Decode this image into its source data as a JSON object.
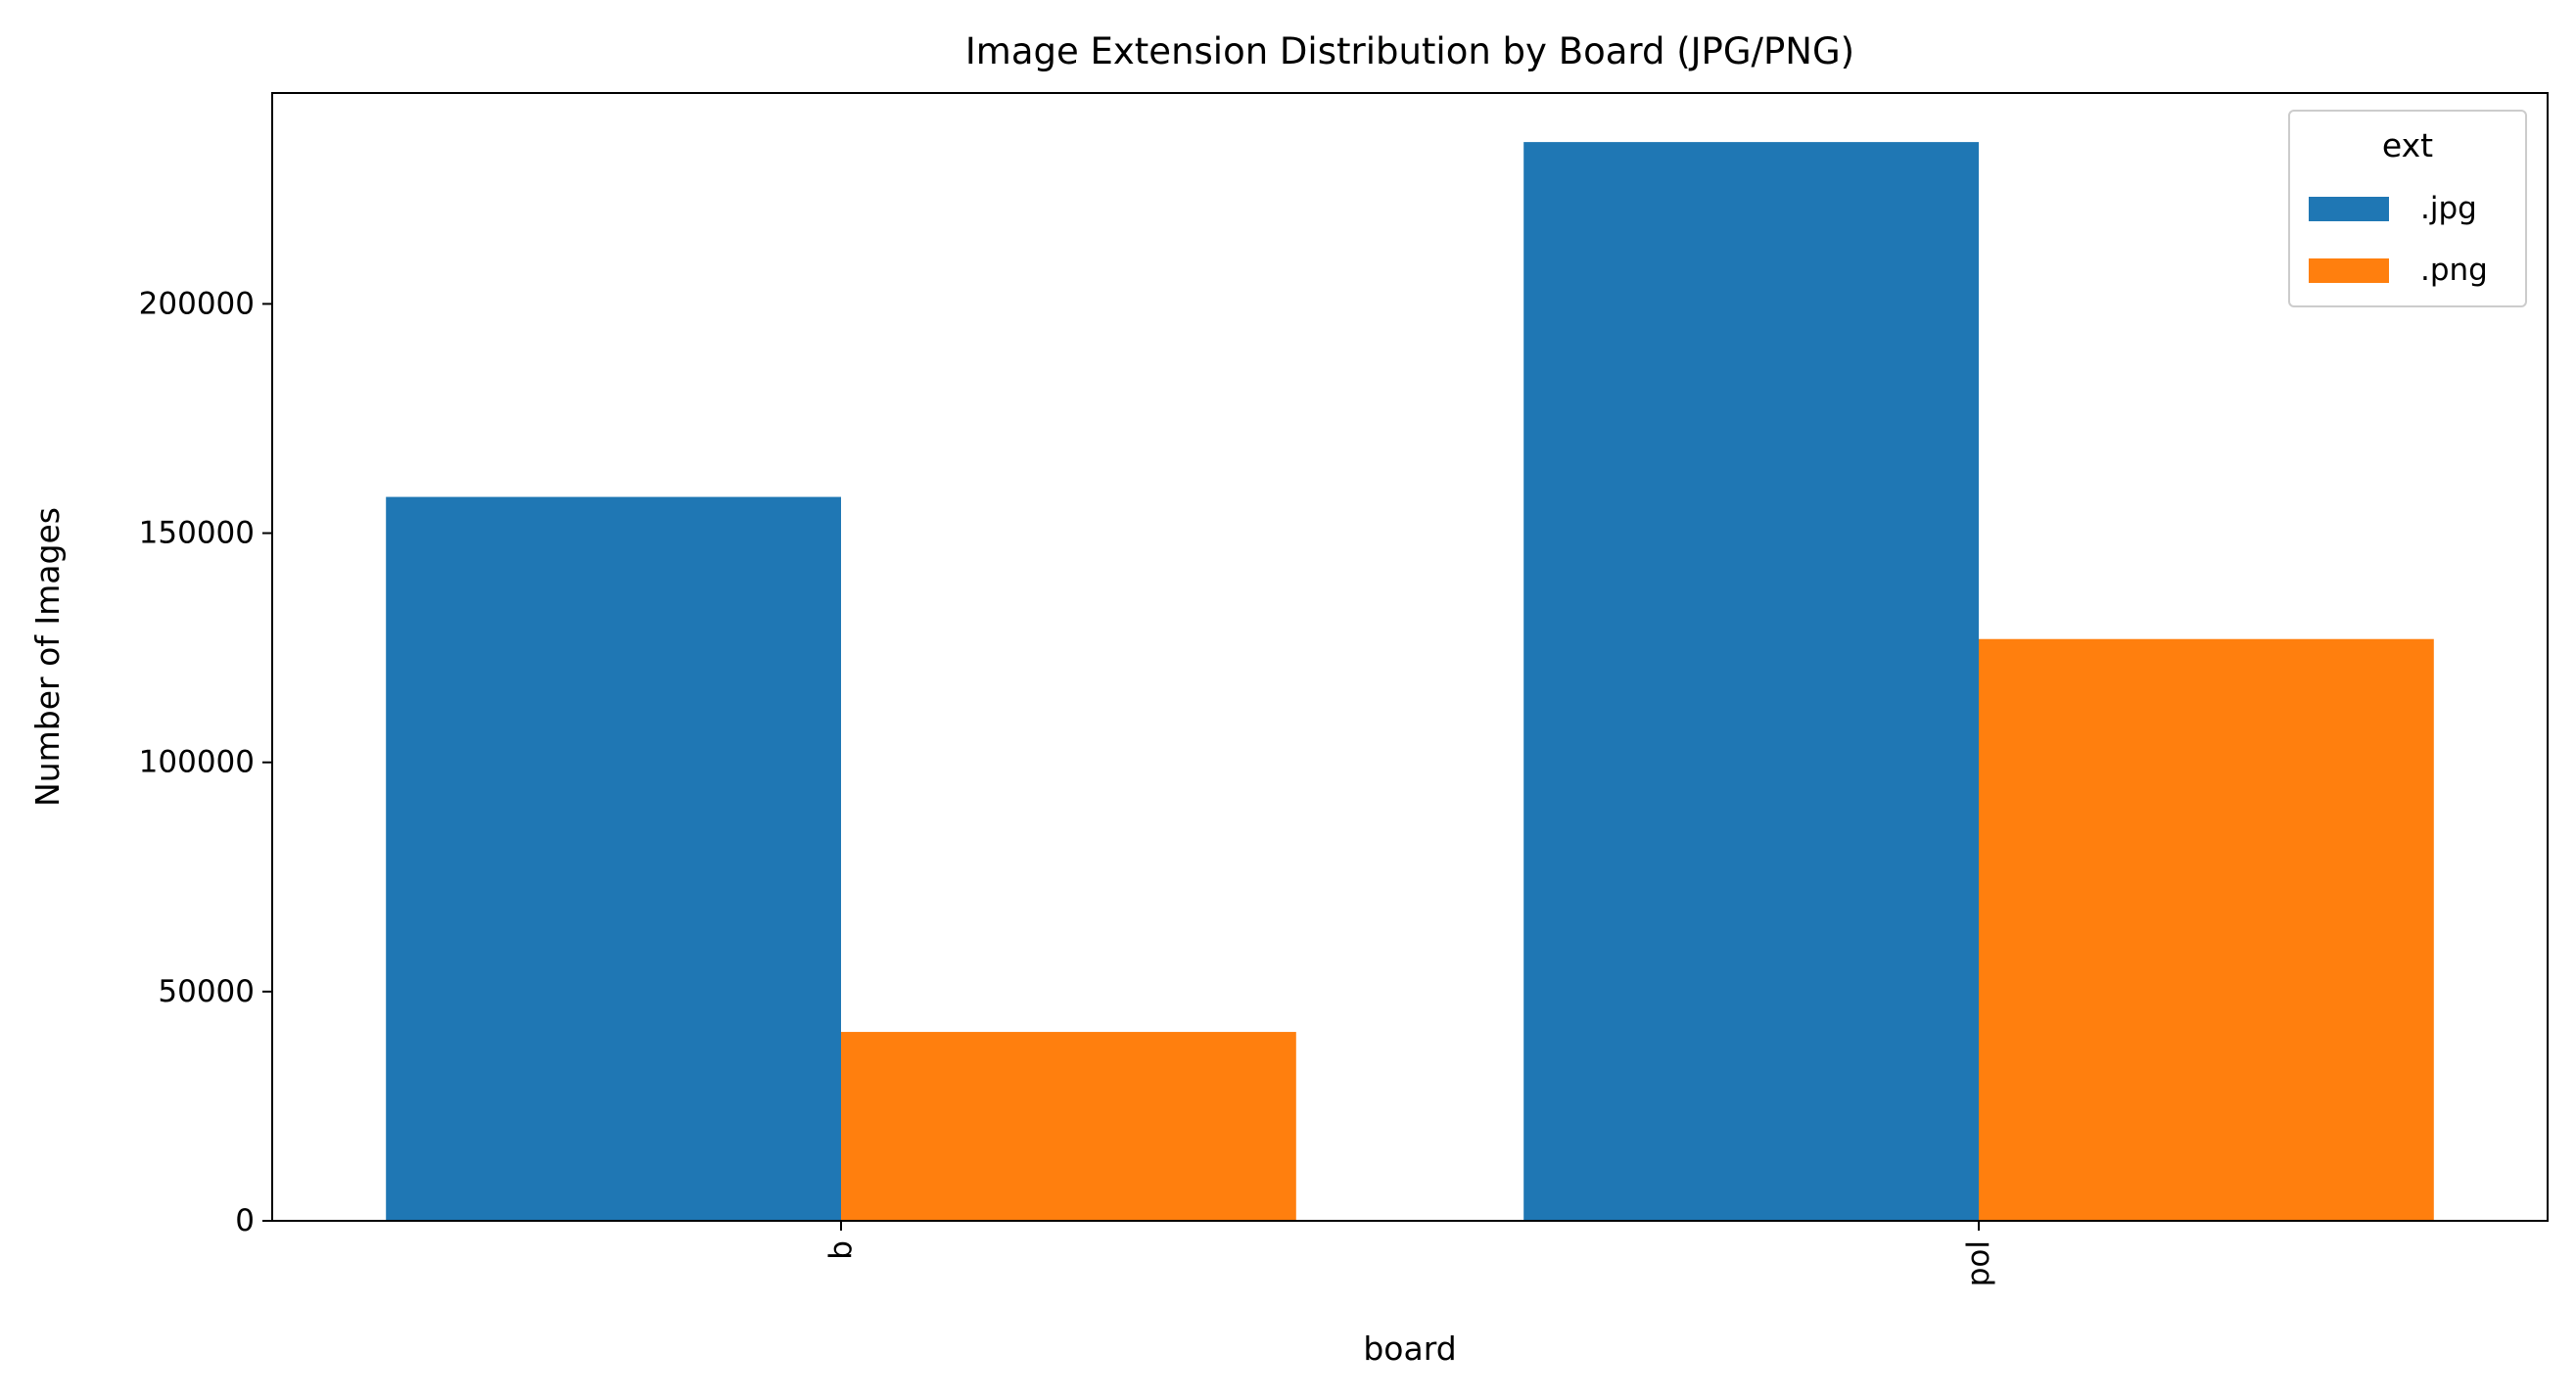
{
  "chart_data": {
    "type": "bar",
    "title": "Image Extension Distribution by Board (JPG/PNG)",
    "xlabel": "board",
    "ylabel": "Number of Images",
    "categories": [
      "b",
      "pol"
    ],
    "series": [
      {
        "name": ".jpg",
        "color": "#1f77b4",
        "values": [
          157900,
          235300
        ]
      },
      {
        "name": ".png",
        "color": "#ff7f0e",
        "values": [
          41200,
          126900
        ]
      }
    ],
    "ylim": [
      0,
      246000
    ],
    "yticks": [
      0,
      50000,
      100000,
      150000,
      200000
    ],
    "ytick_labels": [
      "0",
      "50000",
      "100000",
      "150000",
      "200000"
    ],
    "xtick_rotation": "vertical",
    "grid": false,
    "legend": {
      "title": "ext",
      "placement": "top-right"
    }
  }
}
